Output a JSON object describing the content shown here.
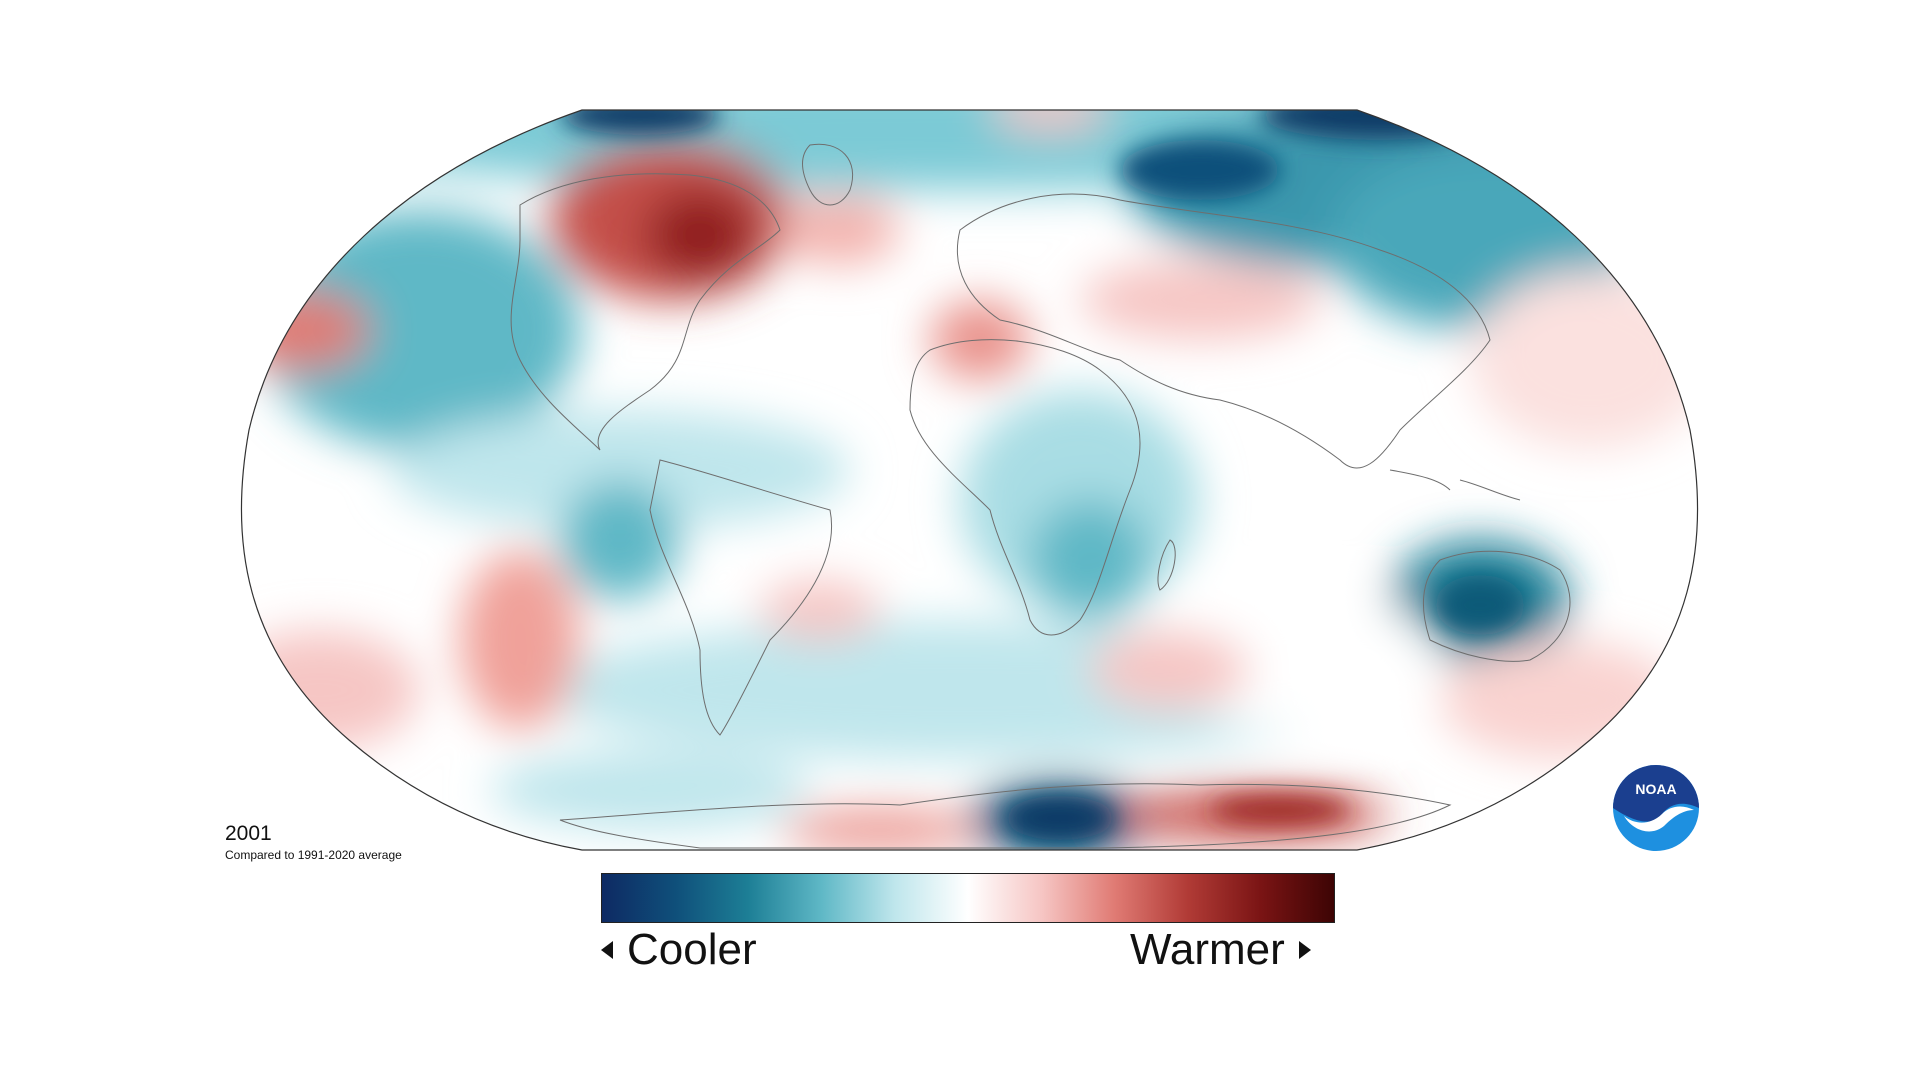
{
  "map": {
    "projection": "Robinson",
    "year": "2001",
    "baseline_text": "Compared to 1991-2020 average"
  },
  "legend": {
    "low_label": "Cooler",
    "high_label": "Warmer",
    "gradient_colors": [
      "#0e2a63",
      "#0f4f7a",
      "#1d7f96",
      "#5fb8c6",
      "#bfe6ec",
      "#ffffff",
      "#f6c6c4",
      "#e07b74",
      "#b13b36",
      "#7a1414",
      "#3d0404"
    ]
  },
  "colors": {
    "warm_strong": "#b3312c",
    "warm_light": "#f3b3ae",
    "cool_strong": "#0b6a86",
    "cool_light": "#a9dde4",
    "cool_dark": "#0b3a66",
    "coastline": "#6e6e6e"
  },
  "logo": {
    "text": "NOAA",
    "primary_color": "#1b3f8f",
    "secondary_color": "#1e90e0"
  }
}
